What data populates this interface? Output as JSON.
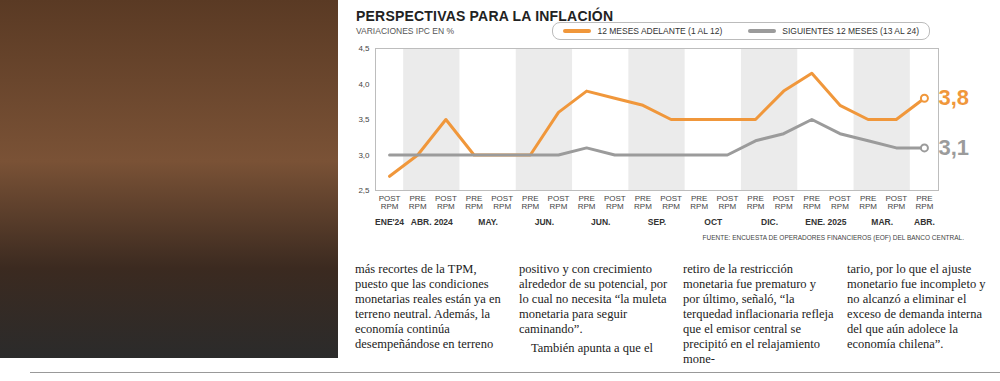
{
  "chart_data": {
    "type": "line",
    "title": "PERSPECTIVAS PARA LA INFLACIÓN",
    "subtitle": "VARIACIONES IPC EN %",
    "source": "FUENTE: ENCUESTA DE OPERADORES FINANCIEROS (EOF) DEL BANCO CENTRAL.",
    "categories": [
      "POST RPM",
      "PRE RPM",
      "POST RPM",
      "PRE RPM",
      "POST RPM",
      "PRE RPM",
      "POST RPM",
      "PRE RPM",
      "POST RPM",
      "PRE RPM",
      "POST RPM",
      "PRE RPM",
      "POST RPM",
      "PRE RPM",
      "POST RPM",
      "PRE RPM",
      "POST RPM",
      "PRE RPM",
      "POST RPM",
      "PRE RPM"
    ],
    "groups": [
      {
        "label": "ENE'24",
        "from": 0,
        "to": 0
      },
      {
        "label": "ABR. 2024",
        "from": 1,
        "to": 2
      },
      {
        "label": "MAY.",
        "from": 3,
        "to": 4
      },
      {
        "label": "JUN.",
        "from": 5,
        "to": 6
      },
      {
        "label": "JUN.",
        "from": 7,
        "to": 8
      },
      {
        "label": "SEP.",
        "from": 9,
        "to": 10
      },
      {
        "label": "OCT",
        "from": 11,
        "to": 12
      },
      {
        "label": "DIC.",
        "from": 13,
        "to": 14
      },
      {
        "label": "ENE. 2025",
        "from": 15,
        "to": 16
      },
      {
        "label": "MAR.",
        "from": 17,
        "to": 18
      },
      {
        "label": "ABR.",
        "from": 19,
        "to": 19
      }
    ],
    "series": [
      {
        "name": "12 MESES ADELANTE (1 AL 12)",
        "color": "#f0973b",
        "values": [
          2.7,
          3.0,
          3.5,
          3.0,
          3.0,
          3.0,
          3.6,
          3.9,
          3.8,
          3.7,
          3.5,
          3.5,
          3.5,
          3.5,
          3.9,
          4.15,
          3.7,
          3.5,
          3.5,
          3.8
        ],
        "value_labels": [
          null,
          null,
          null,
          null,
          null,
          null,
          null,
          null,
          null,
          null,
          null,
          null,
          null,
          null,
          null,
          null,
          null,
          null,
          null,
          "3,8"
        ]
      },
      {
        "name": "SIGUIENTES 12 MESES (13 AL 24)",
        "color": "#9b9b9b",
        "values": [
          3.0,
          3.0,
          3.0,
          3.0,
          3.0,
          3.0,
          3.0,
          3.1,
          3.0,
          3.0,
          3.0,
          3.0,
          3.0,
          3.2,
          3.3,
          3.5,
          3.3,
          3.2,
          3.1,
          3.1
        ],
        "value_labels": [
          null,
          null,
          null,
          null,
          null,
          null,
          null,
          null,
          null,
          null,
          null,
          null,
          null,
          null,
          null,
          null,
          null,
          null,
          null,
          "3,1"
        ]
      }
    ],
    "ylim": [
      2.5,
      4.5
    ],
    "yticks": [
      {
        "value": 2.5,
        "label": "2,5"
      },
      {
        "value": 3.0,
        "label": "3,0"
      },
      {
        "value": 3.5,
        "label": "3,5"
      },
      {
        "value": 4.0,
        "label": "4,0"
      },
      {
        "value": 4.5,
        "label": "4,5"
      }
    ],
    "grid": false,
    "legend": "top-right"
  },
  "article": {
    "columns": [
      [
        "más recortes de la TPM, puesto que las condiciones monetarias reales están ya en terreno neutral. Además, la economía continúa desempeñándose en terreno"
      ],
      [
        "positivo y con crecimiento alrededor de su potencial, por lo cual no necesita “la muleta monetaria para seguir caminando”.",
        "También apunta a que el"
      ],
      [
        "retiro de la restricción monetaria fue prematuro y por último, señaló, “la terquedad inflacionaria refleja que el emisor central se precipitó en el relajamiento mone-"
      ],
      [
        "tario, por lo que el ajuste monetario fue incompleto y no alcanzó a eliminar el exceso de demanda interna del que aún adolece la economía chilena”."
      ]
    ]
  }
}
